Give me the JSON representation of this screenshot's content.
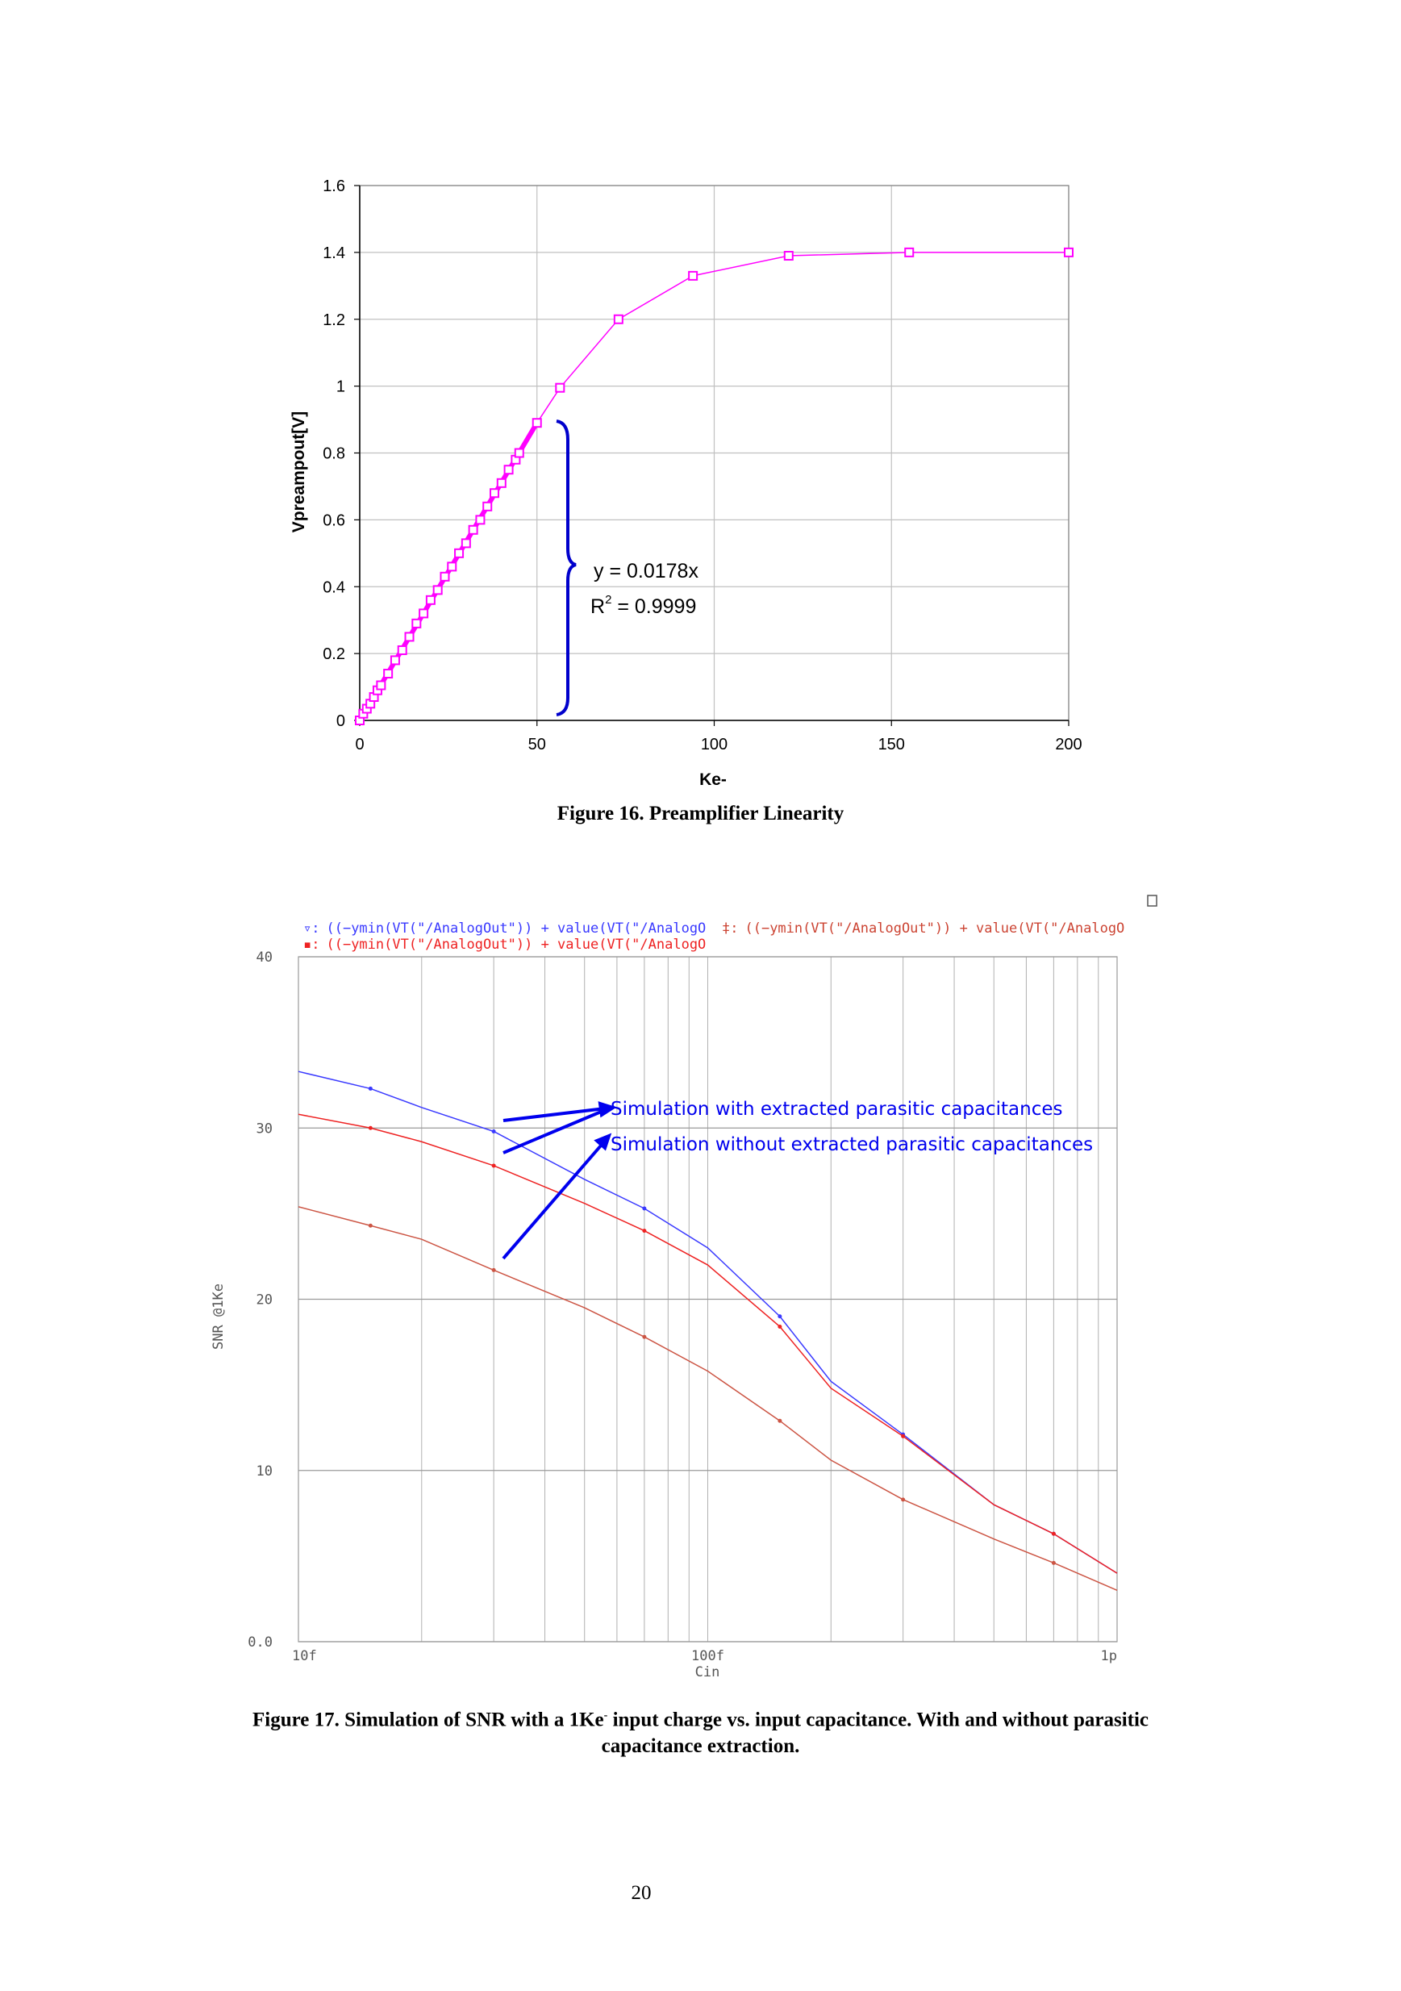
{
  "figure16": {
    "caption": "Figure 16. Preamplifier Linearity",
    "fit_equation": "y = 0.0178x",
    "fit_r2_prefix": "R",
    "fit_r2_sup": "2",
    "fit_r2_value": " = 0.9999"
  },
  "figure17": {
    "caption_part1": "Figure 17. Simulation of SNR with a 1Ke",
    "caption_sup": "-",
    "caption_part2": " input charge vs. input capacitance. With and without parasitic",
    "caption_line2": "capacitance extraction.",
    "legend": [
      {
        "marker": "▿:",
        "text": "((−ymin(VT(\"/AnalogOut\")) + value(VT(\"/AnalogO",
        "color": "#3a3aff"
      },
      {
        "marker": "▪:",
        "text": "((−ymin(VT(\"/AnalogOut\")) + value(VT(\"/AnalogO",
        "color": "#ee2222"
      },
      {
        "marker": "‡:",
        "text": "((−ymin(VT(\"/AnalogOut\")) + value(VT(\"/AnalogO",
        "color": "#cc4433"
      }
    ],
    "annotations": [
      "Simulation with extracted parasitic capacitances",
      "Simulation without extracted parasitic capacitances"
    ],
    "window_icon": "window-icon"
  },
  "page_number": "20",
  "colors": {
    "magenta": "#ff00ff",
    "brace_blue": "#0000cc",
    "blue_series": "#3a3aff",
    "red_series": "#ee2222",
    "brown_series": "#cc5544",
    "grid": "#c0c0c0"
  },
  "chart_data": [
    {
      "type": "line",
      "xlabel": "Ke-",
      "ylabel": "Vpreampout[V]",
      "xlim": [
        0,
        200
      ],
      "ylim": [
        0,
        1.6
      ],
      "xticks": [
        "0",
        "50",
        "100",
        "150",
        "200"
      ],
      "yticks": [
        "0",
        "0.2",
        "0.4",
        "0.6",
        "0.8",
        "1",
        "1.2",
        "1.4",
        "1.6"
      ],
      "grid": true,
      "series": [
        {
          "points": [
            [
              0,
              0
            ],
            [
              1,
              0.02
            ],
            [
              2,
              0.035
            ],
            [
              3,
              0.05
            ],
            [
              4,
              0.07
            ],
            [
              5,
              0.09
            ],
            [
              6,
              0.105
            ],
            [
              8,
              0.14
            ],
            [
              10,
              0.18
            ],
            [
              12,
              0.21
            ],
            [
              14,
              0.25
            ],
            [
              16,
              0.29
            ],
            [
              18,
              0.32
            ],
            [
              20,
              0.36
            ],
            [
              22,
              0.39
            ],
            [
              24,
              0.43
            ],
            [
              26,
              0.46
            ],
            [
              28,
              0.5
            ],
            [
              30,
              0.53
            ],
            [
              32,
              0.57
            ],
            [
              34,
              0.6
            ],
            [
              36,
              0.64
            ],
            [
              38,
              0.68
            ],
            [
              40,
              0.71
            ],
            [
              42,
              0.75
            ],
            [
              44,
              0.78
            ],
            [
              45,
              0.8
            ],
            [
              50,
              0.89
            ],
            [
              56.5,
              0.995
            ],
            [
              73,
              1.2
            ],
            [
              94,
              1.33
            ],
            [
              121,
              1.39
            ],
            [
              155,
              1.4
            ],
            [
              200,
              1.4
            ]
          ]
        }
      ],
      "linear_fit": {
        "slope": 0.0178,
        "r2": 0.9999,
        "range": [
          0,
          50
        ]
      }
    },
    {
      "type": "line",
      "xlabel": "Cin",
      "ylabel": "SNR @1Ke",
      "xscale": "log",
      "xlim": [
        "10f",
        "1p"
      ],
      "ylim": [
        0,
        40
      ],
      "xticks": [
        "10f",
        "100f",
        "1p"
      ],
      "yticks": [
        "0.0",
        "10",
        "20",
        "30",
        "40"
      ],
      "grid": true,
      "series": [
        {
          "color": "#3a3aff",
          "x": [
            "10f",
            "15f",
            "20f",
            "30f",
            "50f",
            "70f",
            "100f",
            "150f",
            "200f",
            "300f",
            "500f",
            "700f",
            "1p"
          ],
          "values": [
            33.3,
            32.3,
            31.2,
            29.8,
            27.0,
            25.3,
            23.0,
            19.0,
            15.2,
            12.1,
            8.0,
            6.3,
            4.0
          ]
        },
        {
          "color": "#ee2222",
          "x": [
            "10f",
            "15f",
            "20f",
            "30f",
            "50f",
            "70f",
            "100f",
            "150f",
            "200f",
            "300f",
            "500f",
            "700f",
            "1p"
          ],
          "values": [
            30.8,
            30.0,
            29.2,
            27.8,
            25.6,
            24.0,
            22.0,
            18.4,
            14.8,
            12.0,
            8.0,
            6.3,
            4.0
          ]
        },
        {
          "color": "#cc5544",
          "x": [
            "10f",
            "15f",
            "20f",
            "30f",
            "50f",
            "70f",
            "100f",
            "150f",
            "200f",
            "300f",
            "500f",
            "700f",
            "1p"
          ],
          "values": [
            25.4,
            24.3,
            23.5,
            21.7,
            19.5,
            17.8,
            15.8,
            12.9,
            10.6,
            8.3,
            6.0,
            4.6,
            3.0
          ]
        }
      ]
    }
  ]
}
